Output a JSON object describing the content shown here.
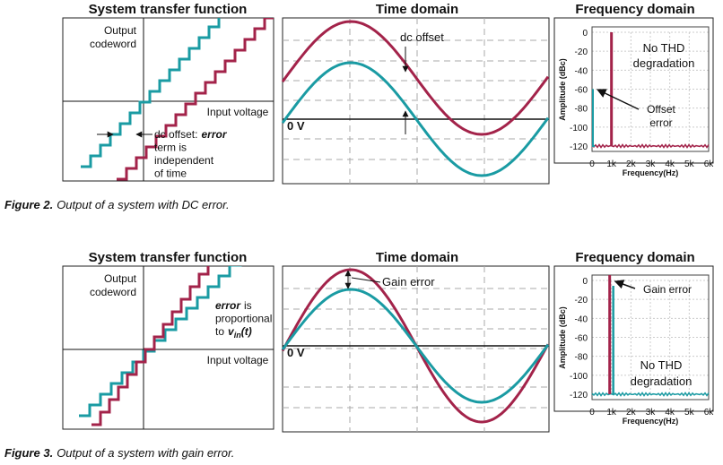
{
  "figures": [
    {
      "transfer": {
        "title": "System transfer function",
        "y_label": [
          "Output",
          "codeword"
        ],
        "x_label": "Input voltage",
        "note": [
          [
            "dc offset:",
            "error"
          ],
          [
            "term is"
          ],
          [
            "independent"
          ],
          [
            "of time"
          ]
        ]
      },
      "time": {
        "title": "Time domain",
        "zero_label": "0 V",
        "annotation": "dc offset"
      },
      "frequency": {
        "title": "Frequency domain",
        "y_label": "Amplitude (dBc)",
        "x_label": "Frequency(Hz)",
        "yticks": [
          "0",
          "-20",
          "-40",
          "-60",
          "-80",
          "-100",
          "-120"
        ],
        "xticks": [
          "0",
          "1k",
          "2k",
          "3k",
          "4k",
          "5k",
          "6k"
        ],
        "annotations": [
          [
            "No THD",
            "degradation"
          ],
          [
            "Offset",
            "error"
          ]
        ]
      },
      "caption": {
        "label": "Figure 2.",
        "text": "Output of a system with DC error."
      }
    },
    {
      "transfer": {
        "title": "System transfer function",
        "y_label": [
          "Output",
          "codeword"
        ],
        "x_label": "Input voltage",
        "note": [
          [
            "error",
            "is"
          ],
          [
            "proportional"
          ],
          [
            "to",
            "v",
            "in",
            "(t)"
          ]
        ]
      },
      "time": {
        "title": "Time domain",
        "zero_label": "0 V",
        "annotation": "Gain error"
      },
      "frequency": {
        "title": "Frequency domain",
        "y_label": "Amplitude (dBc)",
        "x_label": "Frequency(Hz)",
        "yticks": [
          "0",
          "-20",
          "-40",
          "-60",
          "-80",
          "-100",
          "-120"
        ],
        "xticks": [
          "0",
          "1k",
          "2k",
          "3k",
          "4k",
          "5k",
          "6k"
        ],
        "annotations": [
          [
            "Gain error"
          ],
          [
            "No THD",
            "degradation"
          ]
        ]
      },
      "caption": {
        "label": "Figure 3.",
        "text": "Output of a system with gain error."
      }
    }
  ]
}
